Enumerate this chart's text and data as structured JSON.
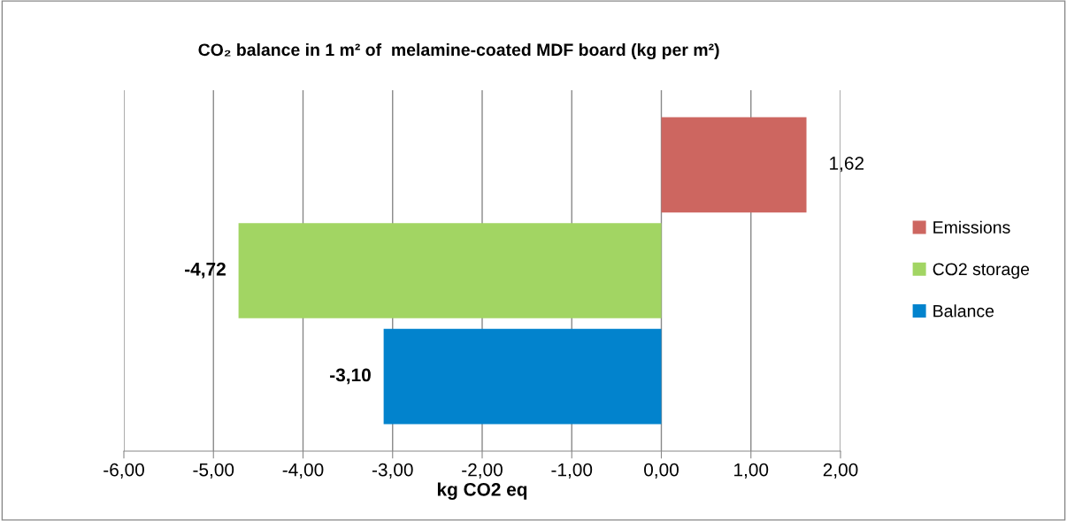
{
  "chart_data": {
    "type": "bar",
    "orientation": "horizontal",
    "title": "CO₂ balance in 1 m² of  melamine-coated MDF board (kg per m²)",
    "xlabel": "kg CO2 eq",
    "categories": [
      null
    ],
    "series": [
      {
        "name": "Emissions",
        "color": "#cd6660",
        "values": [
          1.62
        ],
        "value_labels": [
          "1,62"
        ]
      },
      {
        "name": "CO2 storage",
        "color": "#a2d563",
        "values": [
          -4.72
        ],
        "value_labels": [
          "-4,72"
        ]
      },
      {
        "name": "Balance",
        "color": "#0283cd",
        "values": [
          -3.1
        ],
        "value_labels": [
          "-3,10"
        ]
      }
    ],
    "xlim": [
      -6,
      2
    ],
    "xticks": [
      {
        "value": -6,
        "label": "-6,00"
      },
      {
        "value": -5,
        "label": "-5,00"
      },
      {
        "value": -4,
        "label": "-4,00"
      },
      {
        "value": -3,
        "label": "-3,00"
      },
      {
        "value": -2,
        "label": "-2,00"
      },
      {
        "value": -1,
        "label": "-1,00"
      },
      {
        "value": 0,
        "label": "0,00"
      },
      {
        "value": 1,
        "label": "1,00"
      },
      {
        "value": 2,
        "label": "2,00"
      }
    ],
    "grid": "x",
    "legend": "right"
  }
}
